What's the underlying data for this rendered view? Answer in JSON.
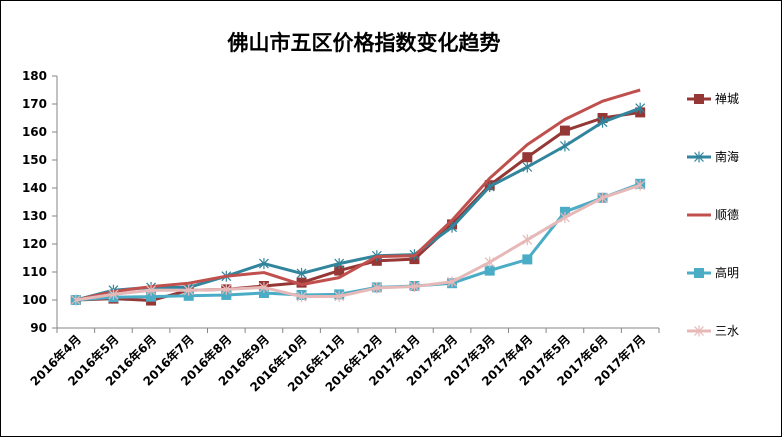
{
  "chart_data": {
    "type": "line",
    "title": "佛山市五区价格指数变化趋势",
    "xlabel": "",
    "ylabel": "",
    "ylim": [
      90,
      180
    ],
    "yticks": [
      90,
      100,
      110,
      120,
      130,
      140,
      150,
      160,
      170,
      180
    ],
    "grid": false,
    "legend": "right",
    "categories": [
      "2016年4月",
      "2016年5月",
      "2016年6月",
      "2016年7月",
      "2016年8月",
      "2016年9月",
      "2016年10月",
      "2016年11月",
      "2016年12月",
      "2017年1月",
      "2017年2月",
      "2017年3月",
      "2017年4月",
      "2017年5月",
      "2017年6月",
      "2017年7月"
    ],
    "series": [
      {
        "name": "禅城",
        "color": "#953735",
        "marker": "square",
        "values": [
          100,
          100.5,
          99.8,
          103.5,
          103.8,
          105,
          106.2,
          110.5,
          114,
          114.6,
          127,
          141,
          151,
          160.5,
          165,
          167
        ]
      },
      {
        "name": "南海",
        "color": "#31859C",
        "marker": "star",
        "values": [
          100,
          103.5,
          104.5,
          104.5,
          108.5,
          113,
          109.5,
          113,
          115.8,
          116.2,
          126,
          140.5,
          147.5,
          155,
          163.5,
          168.5
        ]
      },
      {
        "name": "顺德",
        "color": "#C0504D",
        "marker": "dash",
        "values": [
          100,
          103,
          104.8,
          106,
          108.5,
          109.8,
          105.5,
          108,
          115.5,
          115.8,
          128.5,
          143.5,
          155.5,
          164.5,
          171,
          175
        ]
      },
      {
        "name": "高明",
        "color": "#4BACC6",
        "marker": "square",
        "values": [
          100,
          101,
          101.2,
          101.5,
          101.8,
          102.5,
          101.8,
          102,
          104.5,
          105,
          106,
          110.5,
          114.5,
          131.5,
          136.5,
          141.5
        ]
      },
      {
        "name": "三水",
        "color": "#E6B9B8",
        "marker": "star",
        "values": [
          100,
          102,
          103.5,
          103.5,
          103.8,
          104.5,
          101.2,
          101.3,
          104.3,
          104.8,
          106.5,
          113.5,
          121.5,
          129.5,
          136.5,
          141
        ]
      }
    ]
  }
}
